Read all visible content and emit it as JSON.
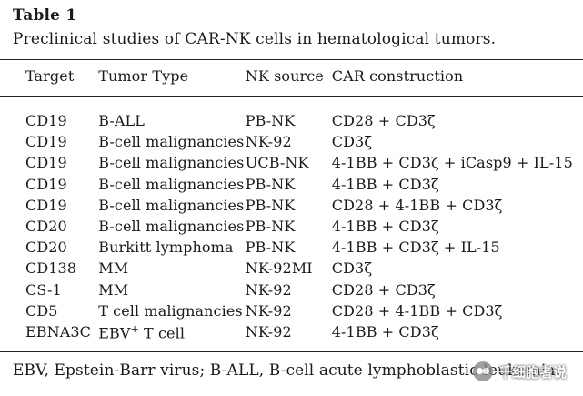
{
  "table_label": "Table 1",
  "caption": "Preclinical studies of CAR-NK cells in hematological tumors.",
  "headers": {
    "target": "Target",
    "tumor_type": "Tumor Type",
    "nk_source": "NK source",
    "car_construction": "CAR construction"
  },
  "rows": [
    {
      "target": "CD19",
      "tumor_type": "B-ALL",
      "nk_source": "PB-NK",
      "car_construction": "CD28 + CD3ζ"
    },
    {
      "target": "CD19",
      "tumor_type": "B-cell malignancies",
      "nk_source": "NK-92",
      "car_construction": "CD3ζ"
    },
    {
      "target": "CD19",
      "tumor_type": "B-cell malignancies",
      "nk_source": "UCB-NK",
      "car_construction": "4-1BB + CD3ζ + iCasp9 + IL-15"
    },
    {
      "target": "CD19",
      "tumor_type": "B-cell malignancies",
      "nk_source": "PB-NK",
      "car_construction": "4-1BB + CD3ζ"
    },
    {
      "target": "CD19",
      "tumor_type": "B-cell malignancies",
      "nk_source": "PB-NK",
      "car_construction": "CD28 + 4-1BB + CD3ζ"
    },
    {
      "target": "CD20",
      "tumor_type": "B-cell malignancies",
      "nk_source": "PB-NK",
      "car_construction": "4-1BB + CD3ζ"
    },
    {
      "target": "CD20",
      "tumor_type": "Burkitt lymphoma",
      "nk_source": "PB-NK",
      "car_construction": "4-1BB + CD3ζ + IL-15"
    },
    {
      "target": "CD138",
      "tumor_type": "MM",
      "nk_source": "NK-92MI",
      "car_construction": "CD3ζ"
    },
    {
      "target": "CS-1",
      "tumor_type": "MM",
      "nk_source": "NK-92",
      "car_construction": "CD28 + CD3ζ"
    },
    {
      "target": "CD5",
      "tumor_type": "T cell malignancies",
      "nk_source": "NK-92",
      "car_construction": "CD28 + 4-1BB + CD3ζ"
    },
    {
      "target": "EBNA3C",
      "tumor_type_prefix": "EBV",
      "tumor_type_sup": "+",
      "tumor_type_suffix": " T cell",
      "nk_source": "NK-92",
      "car_construction": "4-1BB + CD3ζ"
    }
  ],
  "footnote": "EBV, Epstein-Barr virus; B-ALL, B-cell acute lymphoblastic leukemia.",
  "watermark": {
    "text": "千细胞者说",
    "icon": "wechat-logo-icon"
  }
}
